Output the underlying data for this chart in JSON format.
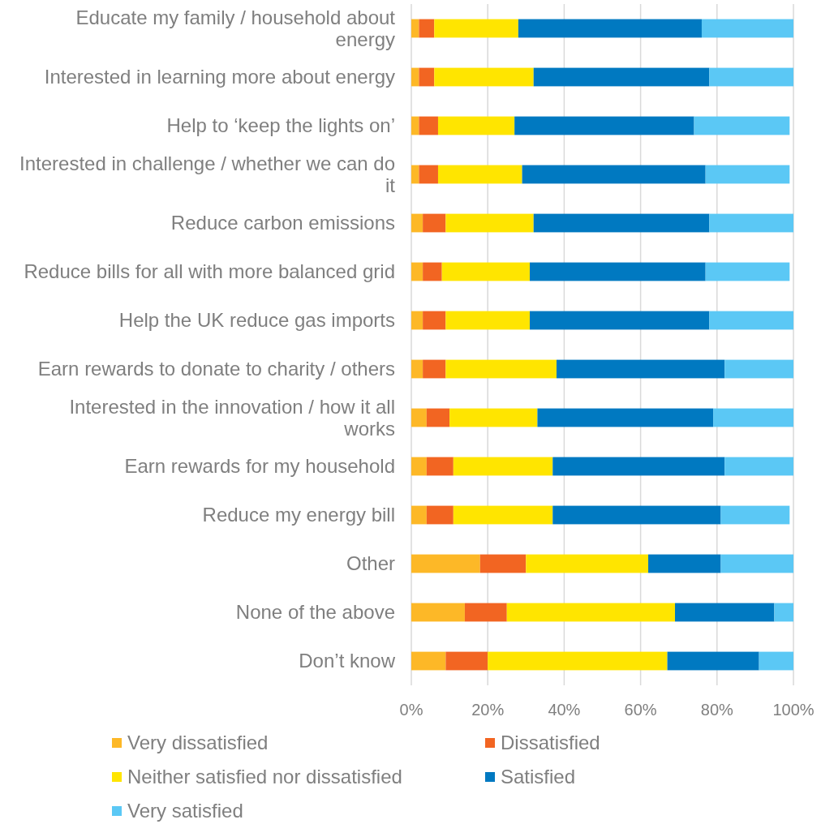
{
  "chart_data": {
    "type": "bar",
    "orientation": "horizontal",
    "stacked": true,
    "categories": [
      "Educate my family / household about energy",
      "Interested in learning more about energy",
      "Help to ‘keep the lights on’",
      "Interested in challenge / whether we can do it",
      "Reduce carbon emissions",
      "Reduce bills for all with more balanced grid",
      "Help the UK reduce gas imports",
      "Earn rewards to donate to charity / others",
      "Interested in the innovation / how it all works",
      "Earn rewards for my household",
      "Reduce my energy bill",
      "Other",
      "None of the above",
      "Don’t know"
    ],
    "series": [
      {
        "name": "Very dissatisfied",
        "color": "#fdb827",
        "values": [
          2,
          2,
          2,
          2,
          3,
          3,
          3,
          3,
          4,
          4,
          4,
          18,
          14,
          9
        ]
      },
      {
        "name": "Dissatisfied",
        "color": "#f26522",
        "values": [
          4,
          4,
          5,
          5,
          6,
          5,
          6,
          6,
          6,
          7,
          7,
          12,
          11,
          11
        ]
      },
      {
        "name": "Neither satisfied nor dissatisfied",
        "color": "#ffe500",
        "values": [
          22,
          26,
          20,
          22,
          23,
          23,
          22,
          29,
          23,
          26,
          26,
          32,
          44,
          47
        ]
      },
      {
        "name": "Satisfied",
        "color": "#0079c1",
        "values": [
          48,
          46,
          47,
          48,
          46,
          46,
          47,
          44,
          46,
          45,
          44,
          19,
          26,
          24
        ]
      },
      {
        "name": "Very satisfied",
        "color": "#5bc8f5",
        "values": [
          24,
          22,
          25,
          22,
          22,
          22,
          22,
          18,
          21,
          18,
          18,
          19,
          5,
          9
        ]
      }
    ],
    "xlim": [
      0,
      100
    ],
    "xticks": [
      {
        "value": 0,
        "label": "0%"
      },
      {
        "value": 20,
        "label": "20%"
      },
      {
        "value": 40,
        "label": "40%"
      },
      {
        "value": 60,
        "label": "60%"
      },
      {
        "value": 80,
        "label": "80%"
      },
      {
        "value": 100,
        "label": "100%"
      }
    ],
    "grid": "x",
    "legend": "bottom"
  }
}
